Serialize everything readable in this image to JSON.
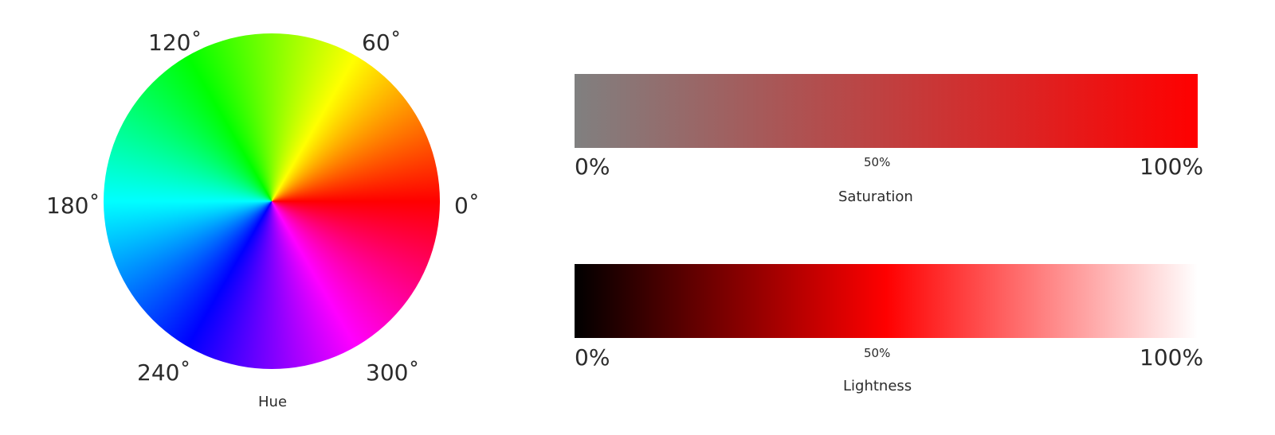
{
  "hue": {
    "label": "Hue",
    "degree_labels": {
      "d0": "0˚",
      "d60": "60˚",
      "d120": "120˚",
      "d180": "180˚",
      "d240": "240˚",
      "d300": "300˚"
    }
  },
  "saturation": {
    "label": "Saturation",
    "tick_min": "0%",
    "tick_mid": "50%",
    "tick_max": "100%",
    "gradient": [
      "#808080",
      "#ff0000"
    ]
  },
  "lightness": {
    "label": "Lightness",
    "tick_min": "0%",
    "tick_mid": "50%",
    "tick_max": "100%",
    "gradient": [
      "#000000",
      "#ff0000",
      "#ffffff"
    ]
  }
}
